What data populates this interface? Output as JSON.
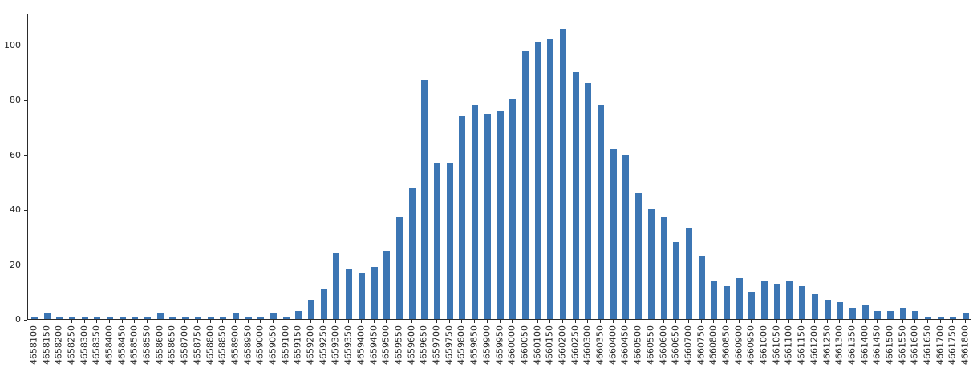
{
  "chart_data": {
    "type": "bar",
    "title": "",
    "xlabel": "",
    "ylabel": "",
    "legend": null,
    "grid": false,
    "bar_color": "#3c76b4",
    "axis_color": "#2b2b2b",
    "tick_label_color": "#262626",
    "ylim": [
      0,
      111.7
    ],
    "yticks": [
      0,
      20,
      40,
      60,
      80,
      100
    ],
    "categories": [
      "4658100",
      "4658150",
      "4658200",
      "4658250",
      "4658300",
      "4658350",
      "4658400",
      "4658450",
      "4658500",
      "4658550",
      "4658600",
      "4658650",
      "4658700",
      "4658750",
      "4658800",
      "4658850",
      "4658900",
      "4658950",
      "4659000",
      "4659050",
      "4659100",
      "4659150",
      "4659200",
      "4659250",
      "4659300",
      "4659350",
      "4659400",
      "4659450",
      "4659500",
      "4659550",
      "4659600",
      "4659650",
      "4659700",
      "4659750",
      "4659800",
      "4659850",
      "4659900",
      "4659950",
      "4660000",
      "4660050",
      "4660100",
      "4660150",
      "4660200",
      "4660250",
      "4660300",
      "4660350",
      "4660400",
      "4660450",
      "4660500",
      "4660550",
      "4660600",
      "4660650",
      "4660700",
      "4660750",
      "4660800",
      "4660850",
      "4660900",
      "4660950",
      "4661000",
      "4661050",
      "4661100",
      "4661150",
      "4661200",
      "4661250",
      "4661300",
      "4661350",
      "4661400",
      "4661450",
      "4661500",
      "4661550",
      "4661600",
      "4661650",
      "4661700",
      "4661750",
      "4661800"
    ],
    "values": [
      1,
      2,
      1,
      1,
      1,
      1,
      1,
      1,
      1,
      1,
      2,
      1,
      1,
      1,
      1,
      1,
      2,
      1,
      1,
      2,
      1,
      3,
      7,
      11,
      24,
      18,
      17,
      19,
      25,
      37,
      48,
      87,
      57,
      57,
      74,
      78,
      75,
      76,
      80,
      98,
      101,
      102,
      106,
      90,
      86,
      78,
      62,
      60,
      46,
      40,
      37,
      28,
      33,
      23,
      14,
      12,
      15,
      10,
      14,
      13,
      14,
      12,
      9,
      7,
      6,
      4,
      5,
      3,
      3,
      4,
      3,
      1,
      1,
      1,
      2
    ]
  }
}
